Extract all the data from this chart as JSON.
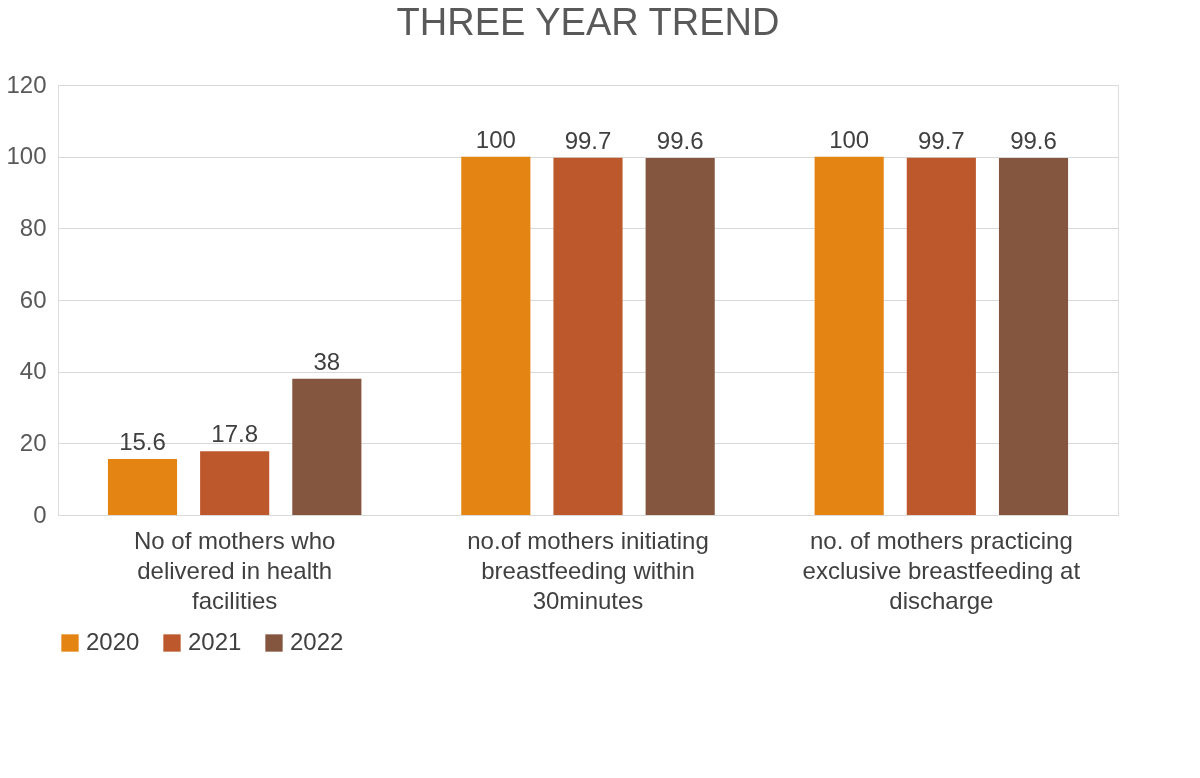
{
  "chart_data": {
    "type": "bar",
    "title": "THREE YEAR TREND",
    "categories": [
      "No of mothers who delivered in health facilities",
      "no.of mothers initiating breastfeeding within 30minutes",
      "no. of mothers practicing exclusive breastfeeding at discharge"
    ],
    "series": [
      {
        "name": "2020",
        "color": "#e48413",
        "values": [
          15.6,
          100,
          100
        ]
      },
      {
        "name": "2021",
        "color": "#bd582c",
        "values": [
          17.8,
          99.7,
          99.7
        ]
      },
      {
        "name": "2022",
        "color": "#845640",
        "values": [
          38,
          99.6,
          99.6
        ]
      }
    ],
    "ylim": [
      0,
      120
    ],
    "yticks": [
      0,
      20,
      40,
      60,
      80,
      100,
      120
    ],
    "grid": "y",
    "legend": "bottom",
    "data_labels": true
  }
}
